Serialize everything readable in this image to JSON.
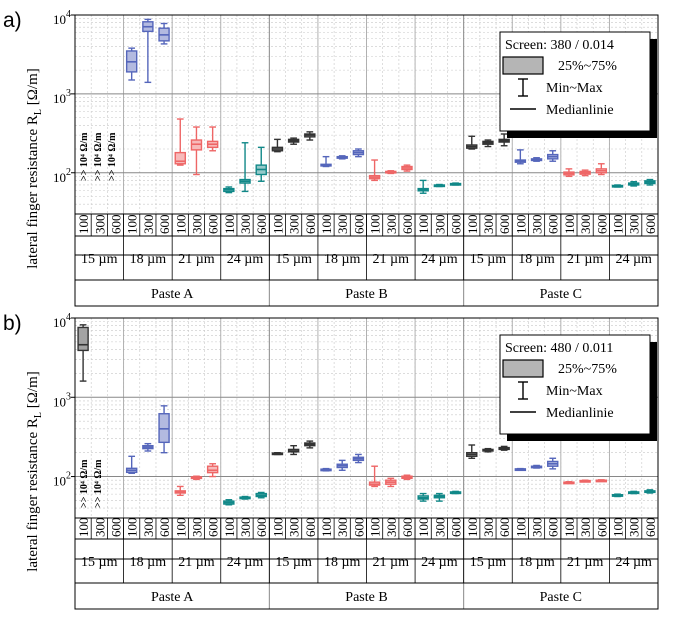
{
  "chart_data": [
    {
      "type": "box",
      "panel_label": "a)",
      "ylabel": "lateral finger resistance R",
      "ylabel_sub": "L",
      "ylabel_unit": "[Ω/m]",
      "yscale": "log",
      "ylim": [
        30,
        10000
      ],
      "yticks": [
        {
          "value": 100,
          "base": "10",
          "exp": "2"
        },
        {
          "value": 1000,
          "base": "10",
          "exp": "3"
        },
        {
          "value": 10000,
          "base": "10",
          "exp": "4"
        }
      ],
      "grid": true,
      "groups": [
        "Paste A",
        "Paste B",
        "Paste C"
      ],
      "widths": [
        "15 µm",
        "18 µm",
        "21 µm",
        "24 µm"
      ],
      "speeds": [
        "100",
        "300",
        "600"
      ],
      "legend": {
        "position": "top-right",
        "title": "Screen: 380 / 0.014",
        "box_label": "25%~75%",
        "whisker_label": "Min~Max",
        "median_label": "Medianlinie"
      },
      "annotations": [
        ">> 10⁴ Ω/m",
        ">> 10⁴ Ω/m",
        ">> 10⁴ Ω/m"
      ],
      "boxes": [
        {
          "group": "Paste A",
          "width": "18 µm",
          "speed": "100",
          "color": "#5566bb",
          "min": 1500,
          "q1": 1900,
          "median": 2550,
          "q3": 3500,
          "max": 3800
        },
        {
          "group": "Paste A",
          "width": "18 µm",
          "speed": "300",
          "color": "#5566bb",
          "min": 1400,
          "q1": 6200,
          "median": 7100,
          "q3": 8200,
          "max": 8800
        },
        {
          "group": "Paste A",
          "width": "18 µm",
          "speed": "600",
          "color": "#5566bb",
          "min": 4300,
          "q1": 4700,
          "median": 5600,
          "q3": 6800,
          "max": 7800
        },
        {
          "group": "Paste A",
          "width": "21 µm",
          "speed": "100",
          "color": "#ee6666",
          "min": 125,
          "q1": 130,
          "median": 140,
          "q3": 180,
          "max": 480
        },
        {
          "group": "Paste A",
          "width": "21 µm",
          "speed": "300",
          "color": "#ee6666",
          "min": 95,
          "q1": 195,
          "median": 230,
          "q3": 260,
          "max": 380
        },
        {
          "group": "Paste A",
          "width": "21 µm",
          "speed": "600",
          "color": "#ee6666",
          "min": 190,
          "q1": 210,
          "median": 230,
          "q3": 250,
          "max": 380
        },
        {
          "group": "Paste A",
          "width": "24 µm",
          "speed": "100",
          "color": "#118888",
          "min": 56,
          "q1": 58,
          "median": 61,
          "q3": 63,
          "max": 66
        },
        {
          "group": "Paste A",
          "width": "24 µm",
          "speed": "300",
          "color": "#118888",
          "min": 58,
          "q1": 74,
          "median": 78,
          "q3": 82,
          "max": 240
        },
        {
          "group": "Paste A",
          "width": "24 µm",
          "speed": "600",
          "color": "#118888",
          "min": 78,
          "q1": 95,
          "median": 110,
          "q3": 125,
          "max": 210
        },
        {
          "group": "Paste B",
          "width": "15 µm",
          "speed": "100",
          "color": "#333333",
          "min": 185,
          "q1": 190,
          "median": 200,
          "q3": 210,
          "max": 265
        },
        {
          "group": "Paste B",
          "width": "15 µm",
          "speed": "300",
          "color": "#333333",
          "min": 230,
          "q1": 245,
          "median": 255,
          "q3": 265,
          "max": 275
        },
        {
          "group": "Paste B",
          "width": "15 µm",
          "speed": "600",
          "color": "#333333",
          "min": 260,
          "q1": 285,
          "median": 300,
          "q3": 310,
          "max": 330
        },
        {
          "group": "Paste B",
          "width": "18 µm",
          "speed": "100",
          "color": "#5566bb",
          "min": 120,
          "q1": 122,
          "median": 125,
          "q3": 128,
          "max": 160
        },
        {
          "group": "Paste B",
          "width": "18 µm",
          "speed": "300",
          "color": "#5566bb",
          "min": 150,
          "q1": 153,
          "median": 157,
          "q3": 160,
          "max": 164
        },
        {
          "group": "Paste B",
          "width": "18 µm",
          "speed": "600",
          "color": "#5566bb",
          "min": 160,
          "q1": 170,
          "median": 180,
          "q3": 190,
          "max": 200
        },
        {
          "group": "Paste B",
          "width": "21 µm",
          "speed": "100",
          "color": "#ee6666",
          "min": 80,
          "q1": 84,
          "median": 88,
          "q3": 92,
          "max": 145
        },
        {
          "group": "Paste B",
          "width": "21 µm",
          "speed": "300",
          "color": "#ee6666",
          "min": 98,
          "q1": 100,
          "median": 102,
          "q3": 104,
          "max": 106
        },
        {
          "group": "Paste B",
          "width": "21 µm",
          "speed": "600",
          "color": "#ee6666",
          "min": 105,
          "q1": 110,
          "median": 115,
          "q3": 120,
          "max": 125
        },
        {
          "group": "Paste B",
          "width": "24 µm",
          "speed": "100",
          "color": "#118888",
          "min": 55,
          "q1": 59,
          "median": 61,
          "q3": 63,
          "max": 80
        },
        {
          "group": "Paste B",
          "width": "24 µm",
          "speed": "300",
          "color": "#118888",
          "min": 67,
          "q1": 68,
          "median": 69,
          "q3": 70,
          "max": 71
        },
        {
          "group": "Paste B",
          "width": "24 µm",
          "speed": "600",
          "color": "#118888",
          "min": 70,
          "q1": 71,
          "median": 72,
          "q3": 73,
          "max": 74
        },
        {
          "group": "Paste C",
          "width": "15 µm",
          "speed": "100",
          "color": "#333333",
          "min": 200,
          "q1": 205,
          "median": 215,
          "q3": 225,
          "max": 290
        },
        {
          "group": "Paste C",
          "width": "15 µm",
          "speed": "300",
          "color": "#333333",
          "min": 215,
          "q1": 230,
          "median": 240,
          "q3": 250,
          "max": 260
        },
        {
          "group": "Paste C",
          "width": "15 µm",
          "speed": "600",
          "color": "#333333",
          "min": 220,
          "q1": 245,
          "median": 255,
          "q3": 265,
          "max": 310
        },
        {
          "group": "Paste C",
          "width": "18 µm",
          "speed": "100",
          "color": "#5566bb",
          "min": 130,
          "q1": 136,
          "median": 140,
          "q3": 145,
          "max": 195
        },
        {
          "group": "Paste C",
          "width": "18 µm",
          "speed": "300",
          "color": "#5566bb",
          "min": 140,
          "q1": 143,
          "median": 146,
          "q3": 150,
          "max": 155
        },
        {
          "group": "Paste C",
          "width": "18 µm",
          "speed": "600",
          "color": "#5566bb",
          "min": 140,
          "q1": 150,
          "median": 160,
          "q3": 170,
          "max": 190
        },
        {
          "group": "Paste C",
          "width": "21 µm",
          "speed": "100",
          "color": "#ee6666",
          "min": 90,
          "q1": 94,
          "median": 98,
          "q3": 102,
          "max": 112
        },
        {
          "group": "Paste C",
          "width": "21 µm",
          "speed": "300",
          "color": "#ee6666",
          "min": 92,
          "q1": 96,
          "median": 100,
          "q3": 104,
          "max": 108
        },
        {
          "group": "Paste C",
          "width": "21 µm",
          "speed": "600",
          "color": "#ee6666",
          "min": 95,
          "q1": 100,
          "median": 106,
          "q3": 112,
          "max": 130
        },
        {
          "group": "Paste C",
          "width": "24 µm",
          "speed": "100",
          "color": "#118888",
          "min": 66,
          "q1": 67,
          "median": 68,
          "q3": 69,
          "max": 70
        },
        {
          "group": "Paste C",
          "width": "24 µm",
          "speed": "300",
          "color": "#118888",
          "min": 68,
          "q1": 70,
          "median": 72,
          "q3": 74,
          "max": 77
        },
        {
          "group": "Paste C",
          "width": "24 µm",
          "speed": "600",
          "color": "#118888",
          "min": 70,
          "q1": 73,
          "median": 76,
          "q3": 79,
          "max": 82
        }
      ]
    },
    {
      "type": "box",
      "panel_label": "b)",
      "ylabel": "lateral finger resistance R",
      "ylabel_sub": "L",
      "ylabel_unit": "[Ω/m]",
      "yscale": "log",
      "ylim": [
        30,
        10000
      ],
      "yticks": [
        {
          "value": 100,
          "base": "10",
          "exp": "2"
        },
        {
          "value": 1000,
          "base": "10",
          "exp": "3"
        },
        {
          "value": 10000,
          "base": "10",
          "exp": "4"
        }
      ],
      "grid": true,
      "groups": [
        "Paste A",
        "Paste B",
        "Paste C"
      ],
      "widths": [
        "15 µm",
        "18 µm",
        "21 µm",
        "24 µm"
      ],
      "speeds": [
        "100",
        "300",
        "600"
      ],
      "legend": {
        "position": "top-right",
        "title": "Screen: 480 / 0.011",
        "box_label": "25%~75%",
        "whisker_label": "Min~Max",
        "median_label": "Medianlinie"
      },
      "annotations": [
        ">> 10⁴ Ω/m",
        ">> 10⁴ Ω/m"
      ],
      "boxes": [
        {
          "group": "Paste A",
          "width": "15 µm",
          "speed": "100",
          "color": "#333333",
          "min": 1600,
          "q1": 3900,
          "median": 4600,
          "q3": 7600,
          "max": 8200
        },
        {
          "group": "Paste A",
          "width": "18 µm",
          "speed": "100",
          "color": "#5566bb",
          "min": 110,
          "q1": 113,
          "median": 120,
          "q3": 127,
          "max": 180
        },
        {
          "group": "Paste A",
          "width": "18 µm",
          "speed": "300",
          "color": "#5566bb",
          "min": 210,
          "q1": 225,
          "median": 235,
          "q3": 245,
          "max": 260
        },
        {
          "group": "Paste A",
          "width": "18 µm",
          "speed": "600",
          "color": "#5566bb",
          "min": 200,
          "q1": 270,
          "median": 400,
          "q3": 620,
          "max": 780
        },
        {
          "group": "Paste A",
          "width": "21 µm",
          "speed": "100",
          "color": "#ee6666",
          "min": 58,
          "q1": 62,
          "median": 64,
          "q3": 66,
          "max": 75
        },
        {
          "group": "Paste A",
          "width": "21 µm",
          "speed": "300",
          "color": "#ee6666",
          "min": 92,
          "q1": 95,
          "median": 97,
          "q3": 99,
          "max": 101
        },
        {
          "group": "Paste A",
          "width": "21 µm",
          "speed": "600",
          "color": "#ee6666",
          "min": 100,
          "q1": 112,
          "median": 120,
          "q3": 135,
          "max": 145
        },
        {
          "group": "Paste A",
          "width": "24 µm",
          "speed": "100",
          "color": "#118888",
          "min": 44,
          "q1": 45,
          "median": 47,
          "q3": 49,
          "max": 51
        },
        {
          "group": "Paste A",
          "width": "24 µm",
          "speed": "300",
          "color": "#118888",
          "min": 52,
          "q1": 53,
          "median": 54,
          "q3": 55,
          "max": 56
        },
        {
          "group": "Paste A",
          "width": "24 µm",
          "speed": "600",
          "color": "#118888",
          "min": 54,
          "q1": 56,
          "median": 58,
          "q3": 61,
          "max": 63
        },
        {
          "group": "Paste B",
          "width": "15 µm",
          "speed": "100",
          "color": "#333333",
          "min": 190,
          "q1": 192,
          "median": 195,
          "q3": 198,
          "max": 200
        },
        {
          "group": "Paste B",
          "width": "15 µm",
          "speed": "300",
          "color": "#333333",
          "min": 190,
          "q1": 205,
          "median": 210,
          "q3": 220,
          "max": 245
        },
        {
          "group": "Paste B",
          "width": "15 µm",
          "speed": "600",
          "color": "#333333",
          "min": 230,
          "q1": 245,
          "median": 255,
          "q3": 265,
          "max": 280
        },
        {
          "group": "Paste B",
          "width": "18 µm",
          "speed": "100",
          "color": "#5566bb",
          "min": 118,
          "q1": 120,
          "median": 122,
          "q3": 124,
          "max": 126
        },
        {
          "group": "Paste B",
          "width": "18 µm",
          "speed": "300",
          "color": "#5566bb",
          "min": 120,
          "q1": 130,
          "median": 137,
          "q3": 143,
          "max": 160
        },
        {
          "group": "Paste B",
          "width": "18 µm",
          "speed": "600",
          "color": "#5566bb",
          "min": 150,
          "q1": 160,
          "median": 168,
          "q3": 175,
          "max": 190
        },
        {
          "group": "Paste B",
          "width": "21 µm",
          "speed": "100",
          "color": "#ee6666",
          "min": 75,
          "q1": 78,
          "median": 80,
          "q3": 85,
          "max": 135
        },
        {
          "group": "Paste B",
          "width": "21 µm",
          "speed": "300",
          "color": "#ee6666",
          "min": 75,
          "q1": 80,
          "median": 85,
          "q3": 90,
          "max": 95
        },
        {
          "group": "Paste B",
          "width": "21 µm",
          "speed": "600",
          "color": "#ee6666",
          "min": 92,
          "q1": 95,
          "median": 98,
          "q3": 101,
          "max": 104
        },
        {
          "group": "Paste B",
          "width": "24 µm",
          "speed": "100",
          "color": "#118888",
          "min": 49,
          "q1": 52,
          "median": 54,
          "q3": 57,
          "max": 61
        },
        {
          "group": "Paste B",
          "width": "24 µm",
          "speed": "300",
          "color": "#118888",
          "min": 49,
          "q1": 54,
          "median": 56,
          "q3": 58,
          "max": 61
        },
        {
          "group": "Paste B",
          "width": "24 µm",
          "speed": "600",
          "color": "#118888",
          "min": 61,
          "q1": 62,
          "median": 63,
          "q3": 64,
          "max": 65
        },
        {
          "group": "Paste C",
          "width": "15 µm",
          "speed": "100",
          "color": "#333333",
          "min": 170,
          "q1": 180,
          "median": 190,
          "q3": 200,
          "max": 250
        },
        {
          "group": "Paste C",
          "width": "15 µm",
          "speed": "300",
          "color": "#333333",
          "min": 205,
          "q1": 210,
          "median": 215,
          "q3": 220,
          "max": 225
        },
        {
          "group": "Paste C",
          "width": "15 µm",
          "speed": "600",
          "color": "#333333",
          "min": 215,
          "q1": 220,
          "median": 225,
          "q3": 232,
          "max": 240
        },
        {
          "group": "Paste C",
          "width": "18 µm",
          "speed": "100",
          "color": "#5566bb",
          "min": 122,
          "q1": 123,
          "median": 124,
          "q3": 125,
          "max": 126
        },
        {
          "group": "Paste C",
          "width": "18 µm",
          "speed": "300",
          "color": "#5566bb",
          "min": 128,
          "q1": 131,
          "median": 133,
          "q3": 135,
          "max": 138
        },
        {
          "group": "Paste C",
          "width": "18 µm",
          "speed": "600",
          "color": "#5566bb",
          "min": 125,
          "q1": 135,
          "median": 145,
          "q3": 155,
          "max": 170
        },
        {
          "group": "Paste C",
          "width": "21 µm",
          "speed": "100",
          "color": "#ee6666",
          "min": 82,
          "q1": 83,
          "median": 84,
          "q3": 85,
          "max": 86
        },
        {
          "group": "Paste C",
          "width": "21 µm",
          "speed": "300",
          "color": "#ee6666",
          "min": 86,
          "q1": 87,
          "median": 88,
          "q3": 89,
          "max": 90
        },
        {
          "group": "Paste C",
          "width": "21 µm",
          "speed": "600",
          "color": "#ee6666",
          "min": 87,
          "q1": 88,
          "median": 89,
          "q3": 90,
          "max": 91
        },
        {
          "group": "Paste C",
          "width": "24 µm",
          "speed": "100",
          "color": "#118888",
          "min": 56,
          "q1": 57,
          "median": 58,
          "q3": 59,
          "max": 60
        },
        {
          "group": "Paste C",
          "width": "24 µm",
          "speed": "300",
          "color": "#118888",
          "min": 61,
          "q1": 62,
          "median": 63,
          "q3": 64,
          "max": 65
        },
        {
          "group": "Paste C",
          "width": "24 µm",
          "speed": "600",
          "color": "#118888",
          "min": 62,
          "q1": 64,
          "median": 65,
          "q3": 66,
          "max": 68
        }
      ]
    }
  ]
}
